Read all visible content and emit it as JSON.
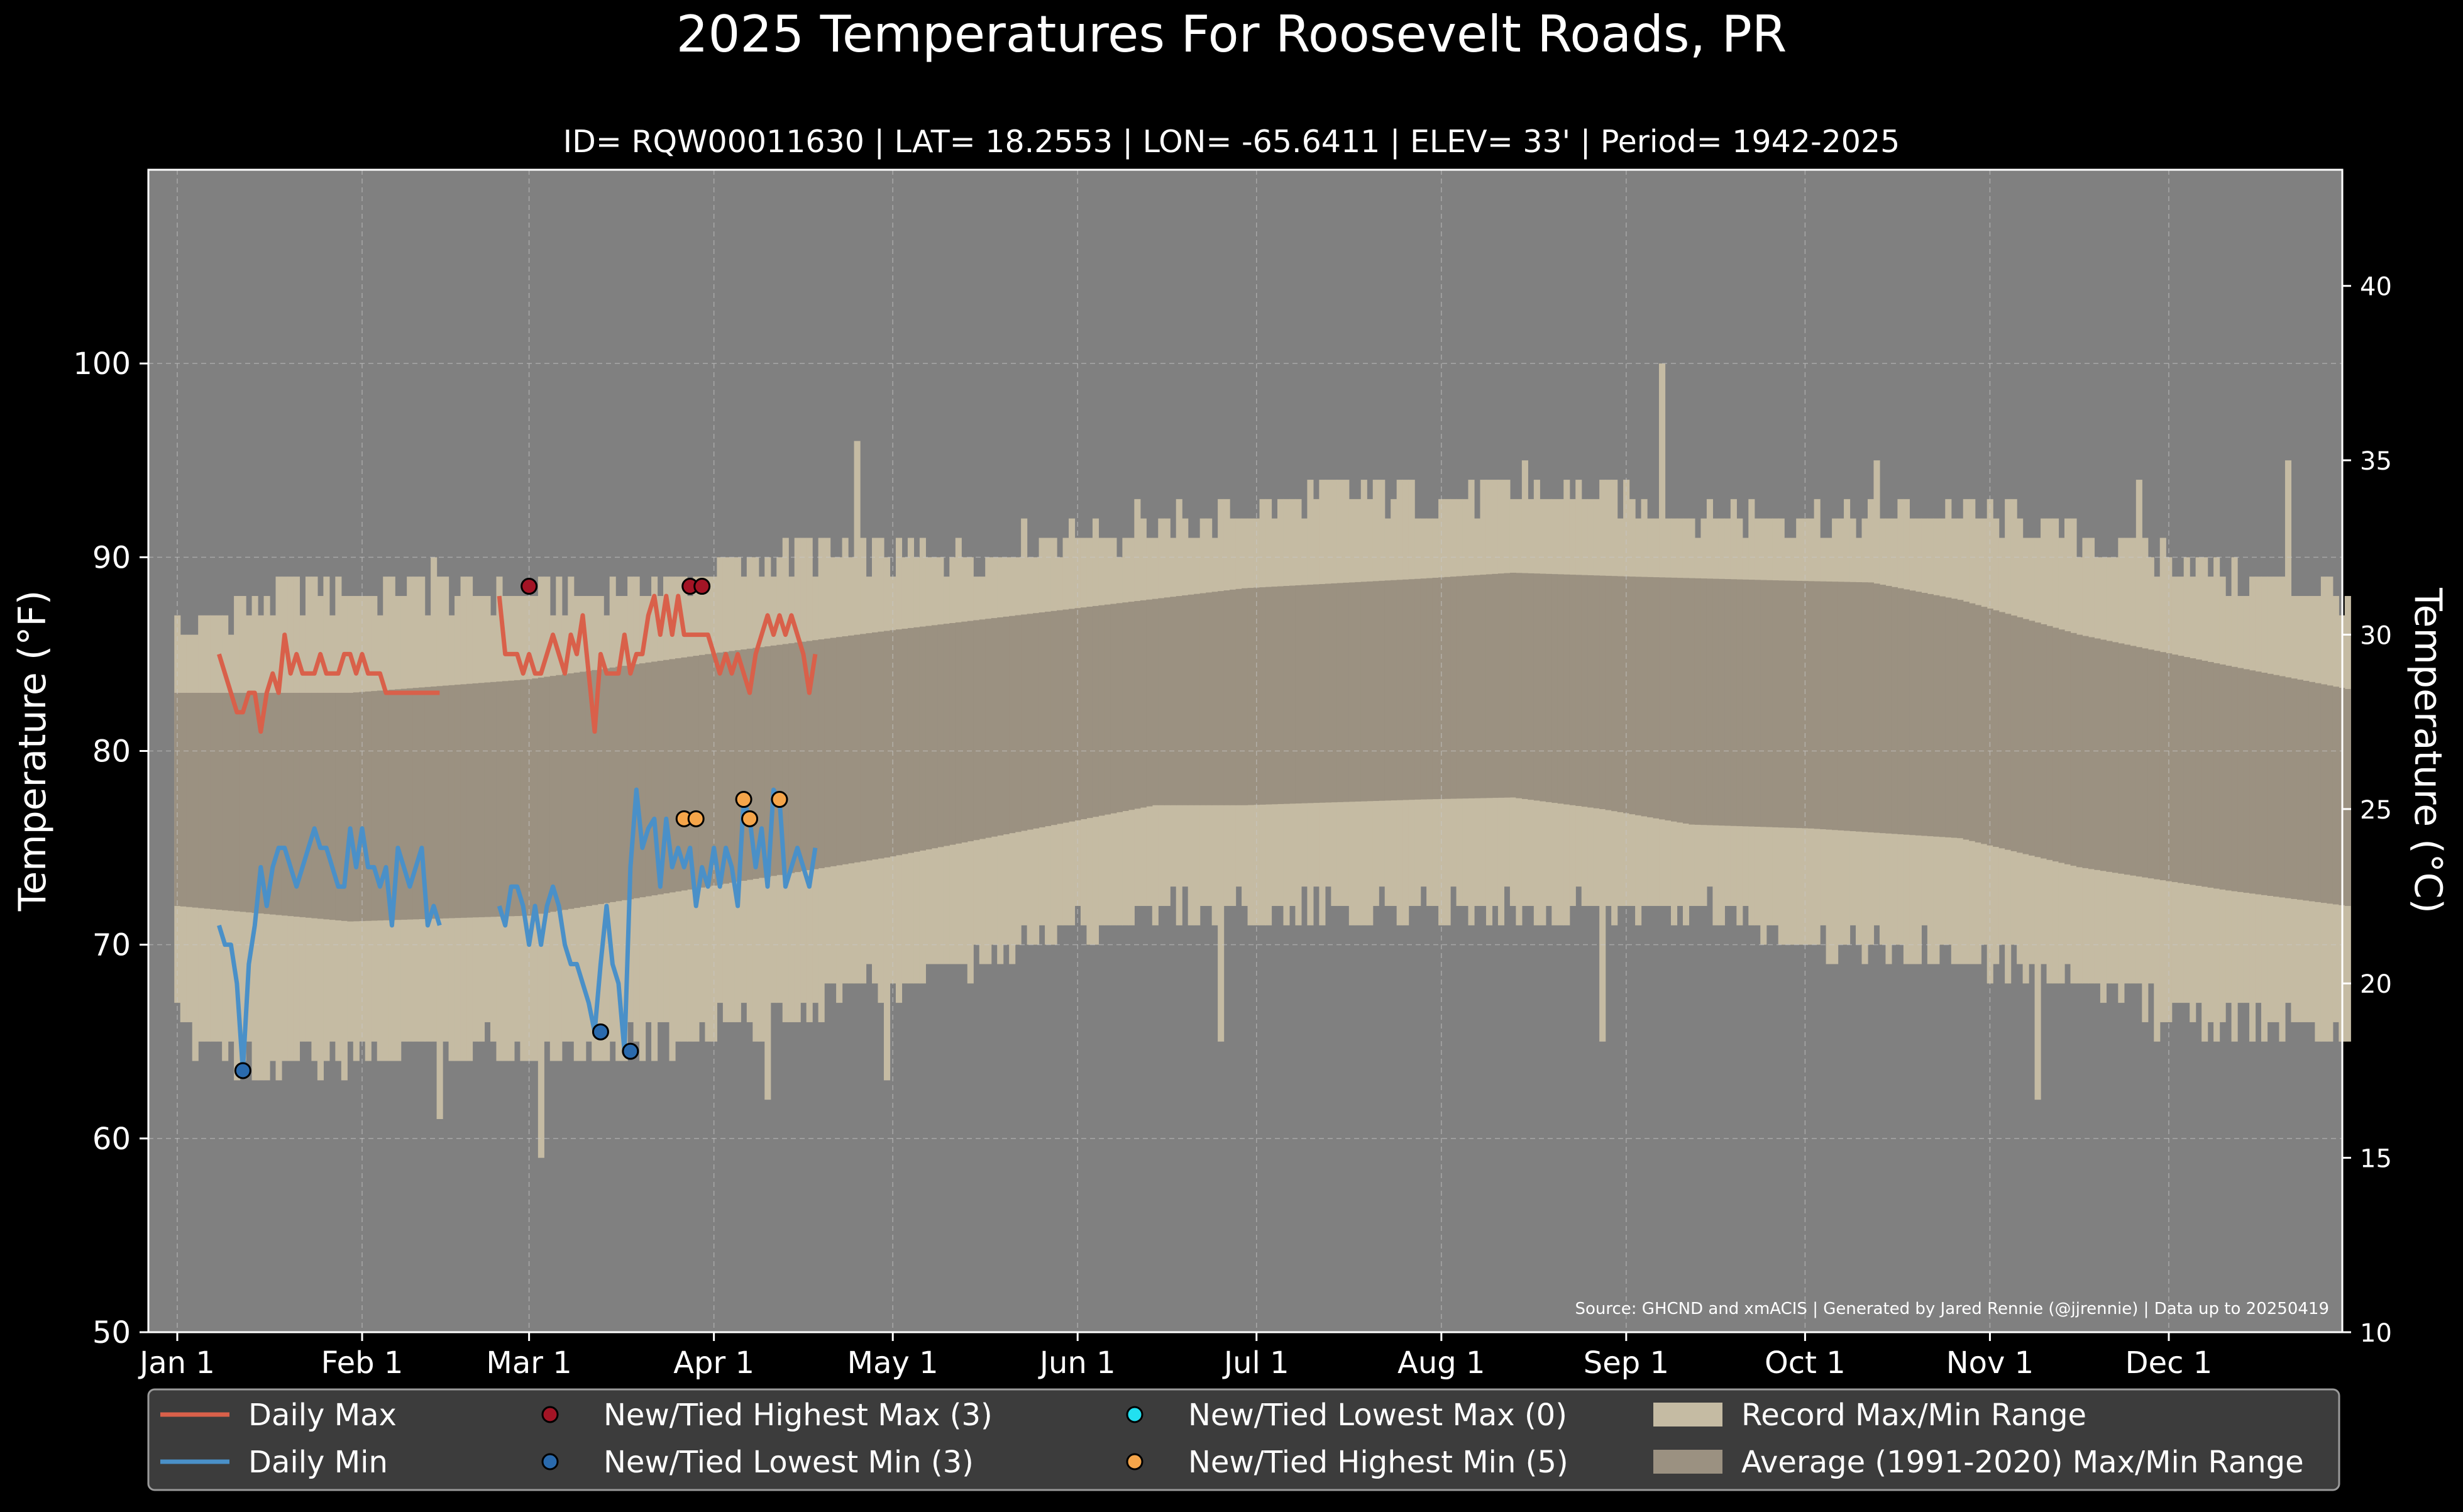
{
  "chart_data": {
    "type": "line",
    "title": "2025 Temperatures For Roosevelt Roads, PR",
    "subtitle": "ID= RQW00011630 | LAT= 18.2553 | LON= -65.6411 | ELEV= 33' | Period= 1942-2025",
    "ylabel_left": "Temperature ($^\\circ$F)",
    "ylabel_left_display": "Temperature (°F)",
    "ylabel_right_display": "Temperature (°C)",
    "ylim": [
      50,
      110
    ],
    "ylim_c": [
      10,
      43.33
    ],
    "yticks_f": [
      "50",
      "60",
      "70",
      "80",
      "90",
      "100"
    ],
    "yticks_c": [
      "10",
      "15",
      "20",
      "25",
      "30",
      "35",
      "40"
    ],
    "months": [
      "Jan 1",
      "Feb 1",
      "Mar 1",
      "Apr 1",
      "May 1",
      "Jun 1",
      "Jul 1",
      "Aug 1",
      "Sep 1",
      "Oct 1",
      "Nov 1",
      "Dec 1"
    ],
    "source_note": "Source: GHCND and xmACIS | Generated by Jared Rennie (@jjrennie) | Data up to 20250419",
    "colors": {
      "daily_max": "#d9604a",
      "daily_min": "#4a90c8",
      "record_range": "#c5bba3",
      "avg_range": "#9b9181",
      "plot_bg": "#808080",
      "highest_max_marker": "#a31425",
      "lowest_min_marker": "#2a6aad",
      "lowest_max_marker": "#22e0f0",
      "highest_min_marker": "#f5a54a"
    },
    "legend": [
      {
        "label": "Daily Max",
        "kind": "line",
        "color": "#d9604a"
      },
      {
        "label": "Daily Min",
        "kind": "line",
        "color": "#4a90c8"
      },
      {
        "label": "New/Tied Highest Max (3)",
        "kind": "marker",
        "color": "#a31425"
      },
      {
        "label": "New/Tied Lowest Min (3)",
        "kind": "marker",
        "color": "#2a6aad"
      },
      {
        "label": "New/Tied Lowest Max (0)",
        "kind": "marker",
        "color": "#22e0f0"
      },
      {
        "label": "New/Tied Highest Min (5)",
        "kind": "marker",
        "color": "#f5a54a"
      },
      {
        "label": "Record Max/Min Range",
        "kind": "patch",
        "color": "#c5bba3"
      },
      {
        "label": "Average (1991-2020) Max/Min Range",
        "kind": "patch",
        "color": "#9b9181"
      }
    ],
    "legend_placement": "bottom",
    "grid": true,
    "record_max_keypoints": [
      [
        1,
        86
      ],
      [
        10,
        87
      ],
      [
        20,
        88
      ],
      [
        40,
        88
      ],
      [
        60,
        88
      ],
      [
        75,
        88
      ],
      [
        90,
        89
      ],
      [
        105,
        90
      ],
      [
        120,
        90
      ],
      [
        135,
        90
      ],
      [
        150,
        91
      ],
      [
        165,
        91
      ],
      [
        180,
        92
      ],
      [
        195,
        93
      ],
      [
        210,
        93
      ],
      [
        225,
        93
      ],
      [
        240,
        93
      ],
      [
        255,
        92
      ],
      [
        270,
        92
      ],
      [
        285,
        92
      ],
      [
        300,
        92
      ],
      [
        315,
        91
      ],
      [
        330,
        90
      ],
      [
        345,
        89
      ],
      [
        365,
        88
      ]
    ],
    "record_min_keypoints": [
      [
        1,
        66
      ],
      [
        15,
        64
      ],
      [
        30,
        64
      ],
      [
        45,
        65
      ],
      [
        60,
        65
      ],
      [
        75,
        65
      ],
      [
        90,
        66
      ],
      [
        105,
        67
      ],
      [
        120,
        68
      ],
      [
        135,
        69
      ],
      [
        150,
        71
      ],
      [
        165,
        72
      ],
      [
        180,
        72
      ],
      [
        195,
        72
      ],
      [
        210,
        72
      ],
      [
        225,
        72
      ],
      [
        240,
        72
      ],
      [
        255,
        72
      ],
      [
        270,
        71
      ],
      [
        285,
        70
      ],
      [
        300,
        70
      ],
      [
        315,
        69
      ],
      [
        330,
        67
      ],
      [
        345,
        66
      ],
      [
        365,
        66
      ]
    ],
    "avg_max_keypoints": [
      [
        1,
        83
      ],
      [
        30,
        83
      ],
      [
        60,
        83.7
      ],
      [
        90,
        85
      ],
      [
        120,
        86.2
      ],
      [
        150,
        87.3
      ],
      [
        180,
        88.4
      ],
      [
        210,
        88.9
      ],
      [
        225,
        89.2
      ],
      [
        245,
        89
      ],
      [
        270,
        88.8
      ],
      [
        285,
        88.7
      ],
      [
        300,
        87.8
      ],
      [
        320,
        86
      ],
      [
        345,
        84.4
      ],
      [
        365,
        83.2
      ]
    ],
    "avg_min_keypoints": [
      [
        1,
        72
      ],
      [
        30,
        71.2
      ],
      [
        60,
        71.5
      ],
      [
        90,
        73
      ],
      [
        120,
        74.5
      ],
      [
        150,
        76.3
      ],
      [
        165,
        77.2
      ],
      [
        180,
        77.2
      ],
      [
        210,
        77.5
      ],
      [
        225,
        77.6
      ],
      [
        240,
        77
      ],
      [
        255,
        76.2
      ],
      [
        275,
        76
      ],
      [
        300,
        75.5
      ],
      [
        320,
        74
      ],
      [
        345,
        72.8
      ],
      [
        365,
        72
      ]
    ],
    "record_spikes_max": [
      [
        44,
        90
      ],
      [
        115,
        96
      ],
      [
        250,
        100
      ],
      [
        227,
        95
      ],
      [
        286,
        95
      ],
      [
        330,
        94
      ],
      [
        355,
        95
      ],
      [
        162,
        93
      ]
    ],
    "record_spikes_min": [
      [
        45,
        61
      ],
      [
        62,
        59
      ],
      [
        100,
        62
      ],
      [
        120,
        63
      ],
      [
        176,
        65
      ],
      [
        240,
        65
      ],
      [
        313,
        62
      ]
    ],
    "daily_max_series": [
      {
        "x": [
          8,
          9,
          10,
          11,
          12,
          13,
          14,
          15,
          16,
          17,
          18,
          19,
          20,
          21,
          22,
          23,
          24,
          25,
          26,
          27,
          28,
          29,
          30,
          31,
          32,
          33,
          34,
          35,
          36,
          37,
          38,
          39,
          40,
          41,
          42,
          43,
          44,
          45
        ],
        "y": [
          85,
          84,
          83,
          82,
          82,
          83,
          83,
          81,
          83,
          84,
          83,
          86,
          84,
          85,
          84,
          84,
          84,
          85,
          84,
          84,
          84,
          85,
          85,
          84,
          85,
          84,
          84,
          84,
          83,
          83,
          83,
          83,
          83,
          83,
          83,
          83,
          83,
          83
        ]
      },
      {
        "x": [
          55,
          56,
          57,
          58,
          59,
          60,
          61,
          62,
          63,
          64,
          65,
          66,
          67,
          68,
          69,
          70,
          71,
          72,
          73,
          74,
          75,
          76,
          77,
          78,
          79,
          80,
          81,
          82,
          83,
          84,
          85,
          86,
          87,
          88,
          89,
          90,
          91,
          92,
          93,
          94,
          95,
          96,
          97,
          98,
          99,
          100,
          101,
          102,
          103,
          104,
          105,
          106,
          107,
          108
        ],
        "y": [
          88,
          85,
          85,
          85,
          84,
          85,
          84,
          84,
          85,
          86,
          85,
          84,
          86,
          85,
          87,
          84,
          81,
          85,
          84,
          84,
          84,
          86,
          84,
          85,
          85,
          87,
          88,
          86,
          88,
          86,
          88,
          86,
          86,
          86,
          86,
          86,
          85,
          84,
          85,
          84,
          85,
          84,
          83,
          85,
          86,
          87,
          86,
          87,
          86,
          87,
          86,
          85,
          83,
          85
        ]
      }
    ],
    "daily_min_series": [
      {
        "x": [
          8,
          9,
          10,
          11,
          12,
          13,
          14,
          15,
          16,
          17,
          18,
          19,
          20,
          21,
          22,
          23,
          24,
          25,
          26,
          27,
          28,
          29,
          30,
          31,
          32,
          33,
          34,
          35,
          36,
          37,
          38,
          39,
          40,
          41,
          42,
          43,
          44,
          45
        ],
        "y": [
          71,
          70,
          70,
          68,
          63.5,
          69,
          71,
          74,
          72,
          74,
          75,
          75,
          74,
          73,
          74,
          75,
          76,
          75,
          75,
          74,
          73,
          73,
          76,
          74,
          76,
          74,
          74,
          73,
          74,
          71,
          75,
          74,
          73,
          74,
          75,
          71,
          72,
          71
        ]
      },
      {
        "x": [
          55,
          56,
          57,
          58,
          59,
          60,
          61,
          62,
          63,
          64,
          65,
          66,
          67,
          68,
          69,
          70,
          71,
          72,
          73,
          74,
          75,
          76,
          77,
          78,
          79,
          80,
          81,
          82,
          83,
          84,
          85,
          86,
          87,
          88,
          89,
          90,
          91,
          92,
          93,
          94,
          95,
          96,
          97,
          98,
          99,
          100,
          101,
          102,
          103,
          104,
          105,
          106,
          107,
          108
        ],
        "y": [
          72,
          71,
          73,
          73,
          72,
          70,
          72,
          70,
          72,
          73,
          72,
          70,
          69,
          69,
          68,
          67,
          65.5,
          69,
          72,
          69,
          68,
          64.5,
          74,
          78,
          75,
          76,
          76.5,
          73,
          76.5,
          74,
          75,
          74,
          75,
          72,
          74,
          73,
          75,
          73,
          75,
          74,
          72,
          77.5,
          76.5,
          74,
          76,
          73,
          78,
          77.5,
          73,
          74,
          75,
          74,
          73,
          75
        ]
      }
    ],
    "highest_max_points": [
      [
        60,
        88.5
      ],
      [
        87,
        88.5
      ],
      [
        89,
        88.5
      ]
    ],
    "lowest_min_points": [
      [
        12,
        63.5
      ],
      [
        72,
        65.5
      ],
      [
        77,
        64.5
      ]
    ],
    "lowest_max_points": [],
    "highest_min_points": [
      [
        86,
        76.5
      ],
      [
        88,
        76.5
      ],
      [
        96,
        77.5
      ],
      [
        97,
        76.5
      ],
      [
        102,
        77.5
      ]
    ]
  }
}
